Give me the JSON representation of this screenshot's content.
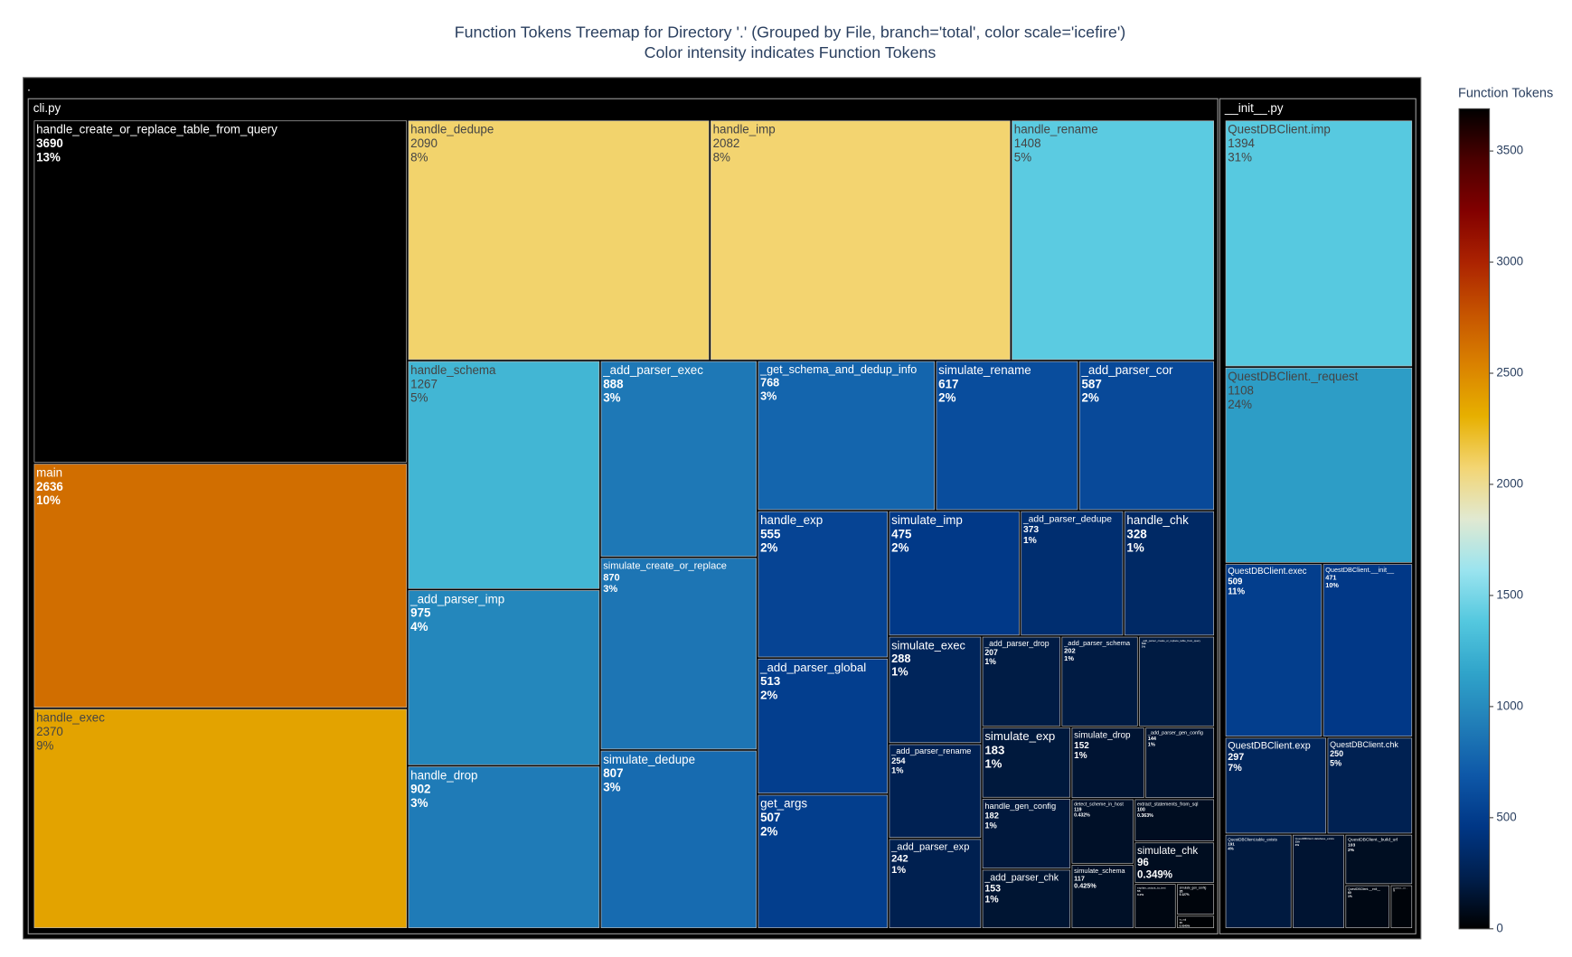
{
  "chart_data": {
    "type": "treemap",
    "title": "Function Tokens Treemap for Directory '.' (Grouped by File, branch='total', color scale='icefire')",
    "subtitle": "Color intensity indicates Function Tokens",
    "root_label": ".",
    "groups": [
      {
        "name": "cli.py",
        "names": [
          "handle_create_or_replace_table_from_query",
          "main",
          "handle_exec",
          "handle_dedupe",
          "handle_imp",
          "handle_rename",
          "handle_schema",
          "_add_parser_imp",
          "handle_drop",
          "_add_parser_exec",
          "simulate_create_or_replace",
          "simulate_dedupe",
          "_get_schema_and_dedup_info",
          "simulate_rename",
          "_add_parser_cor",
          "handle_exp",
          "_add_parser_global",
          "get_args",
          "simulate_imp",
          "_add_parser_dedupe",
          "handle_chk",
          "simulate_exec",
          "_add_parser_rename",
          "_add_parser_exp",
          "_add_parser_drop",
          "_add_parser_schema",
          "_add_parser_create_or_replace_table_from_query",
          "simulate_exp",
          "handle_gen_config",
          "_add_parser_chk",
          "simulate_drop",
          "_add_parser_gen_config",
          "detect_scheme_in_host",
          "simulate_schema",
          "extract_statements_from_sql",
          "simulate_chk",
          "explain_output_to_text",
          "simulate_gen_config",
          "is_sql"
        ],
        "values": [
          3690,
          2636,
          2370,
          2090,
          2082,
          1408,
          1267,
          975,
          902,
          888,
          870,
          807,
          768,
          617,
          587,
          555,
          513,
          507,
          475,
          373,
          328,
          288,
          254,
          242,
          207,
          202,
          199,
          183,
          182,
          153,
          152,
          144,
          119,
          117,
          100,
          96,
          55,
          35,
          15
        ],
        "percent_labels": [
          "13%",
          "10%",
          "9%",
          "8%",
          "8%",
          "5%",
          "5%",
          "4%",
          "3%",
          "3%",
          "3%",
          "3%",
          "3%",
          "2%",
          "2%",
          "2%",
          "2%",
          "2%",
          "2%",
          "1%",
          "1%",
          "1%",
          "1%",
          "1%",
          "1%",
          "1%",
          "1%",
          "1%",
          "1%",
          "1%",
          "1%",
          "1%",
          "0.432%",
          "0.425%",
          "0.363%",
          "0.349%",
          "0.2%",
          "0.127%",
          "0.0545%"
        ]
      },
      {
        "name": "__init__.py",
        "names": [
          "QuestDBClient.imp",
          "QuestDBClient._request",
          "QuestDBClient.exec",
          "QuestDBClient.__init__",
          "QuestDBClient.exp",
          "QuestDBClient.chk",
          "QuestDBClient.table_exists",
          "QuestDBClient.database_exists",
          "QuestDBClient._build_url",
          "QuestDBClient.__exit__",
          "QuestDBClient.__enter__"
        ],
        "values": [
          1394,
          1108,
          509,
          471,
          297,
          250,
          191,
          150,
          103,
          60,
          30
        ],
        "percent_labels": [
          "31%",
          "24%",
          "11%",
          "10%",
          "7%",
          "5%",
          "4%",
          "3%",
          "2%",
          "1%",
          "1%"
        ]
      }
    ],
    "colorscale": [
      "#000000",
      "#001f4d",
      "#003786",
      "#0e58a8",
      "#217eb8",
      "#30a4ca",
      "#54c8df",
      "#9be4ef",
      "#e1e9d1",
      "#f3d573",
      "#e7b000",
      "#da8200",
      "#c65400",
      "#ac2301",
      "#820000",
      "#4c0000",
      "#000000"
    ],
    "colorbar": {
      "title": "Function Tokens",
      "range": [
        0,
        3690
      ],
      "ticks": [
        0,
        500,
        1000,
        1500,
        2000,
        2500,
        3000,
        3500
      ]
    }
  }
}
